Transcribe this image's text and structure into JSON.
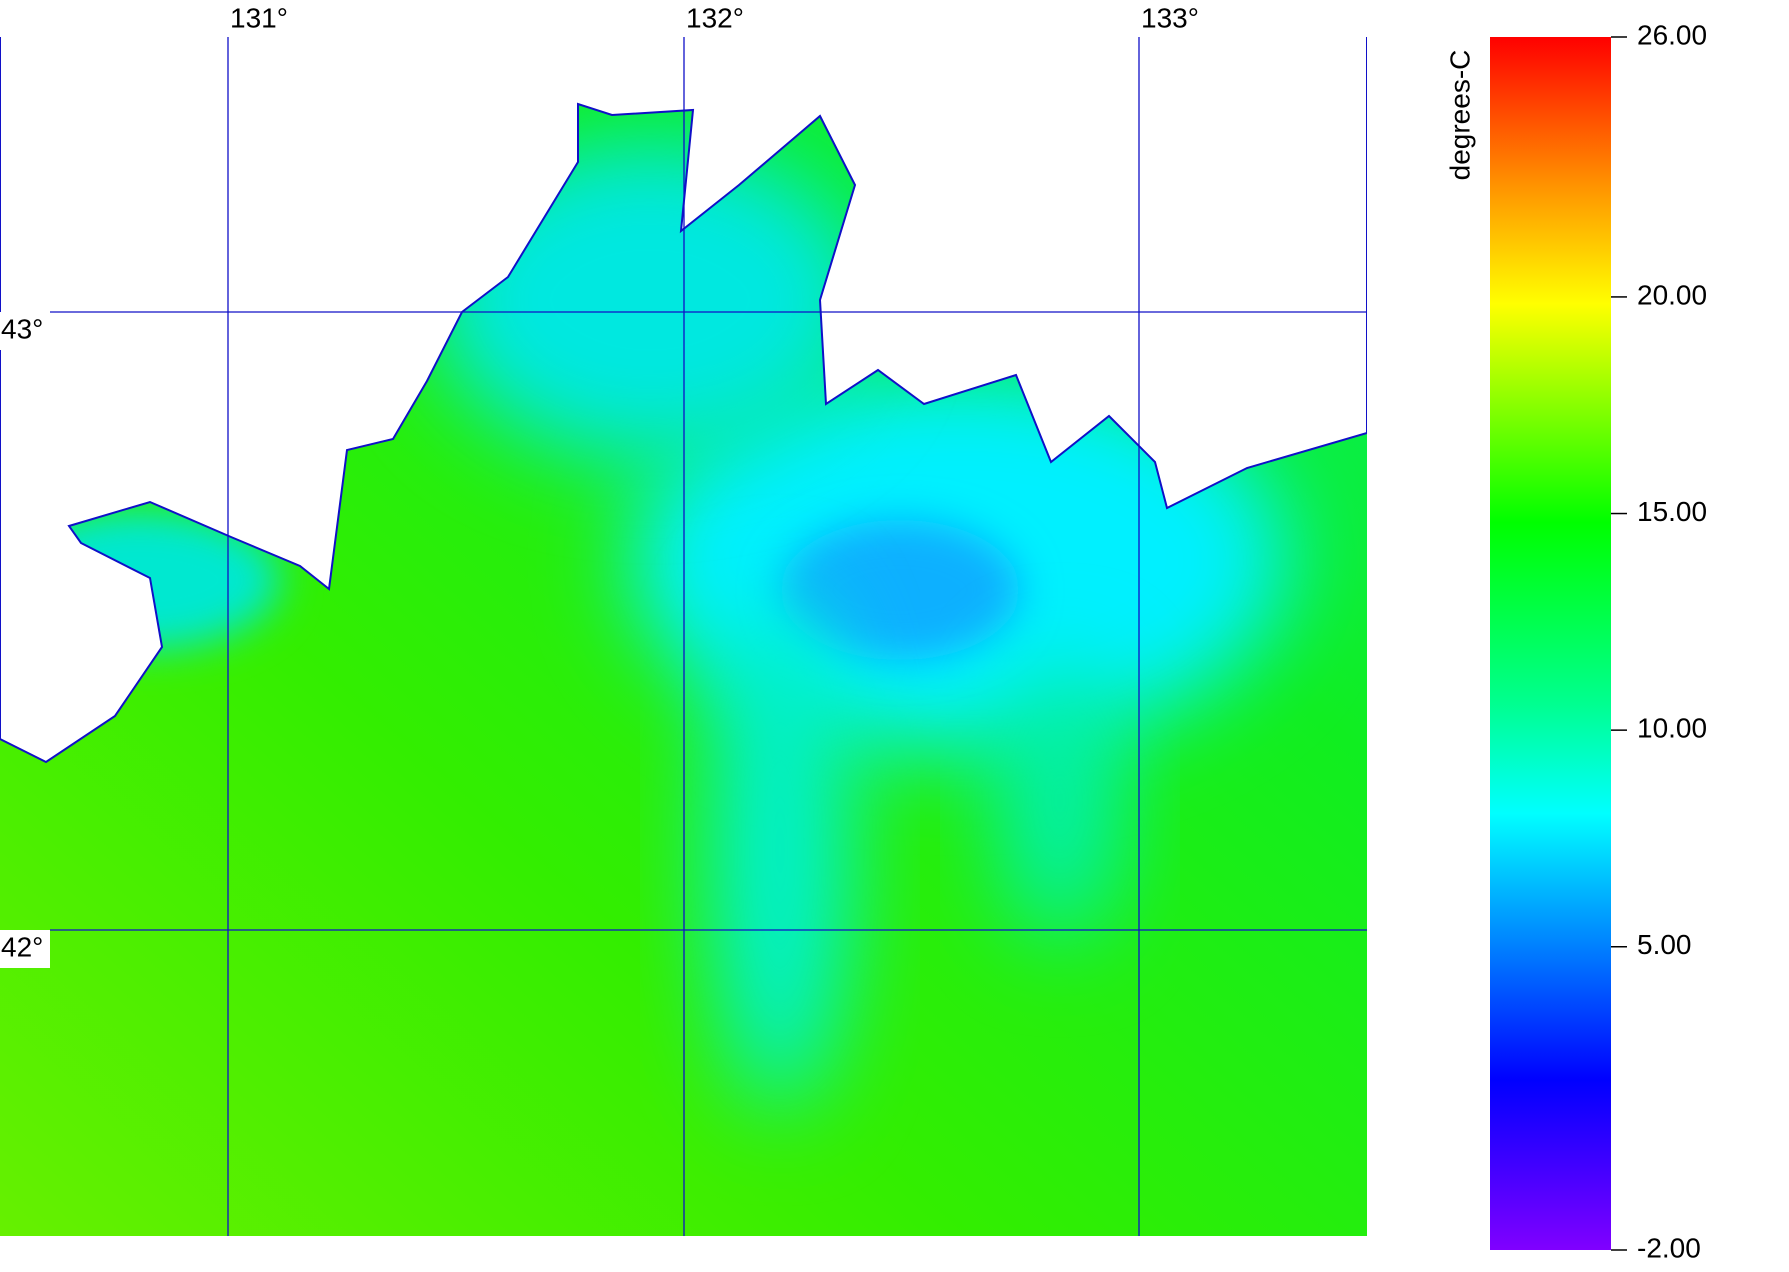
{
  "map": {
    "longitude_labels": [
      "131°",
      "132°",
      "133°"
    ],
    "latitude_labels": [
      "43°",
      "42°"
    ]
  },
  "colorbar": {
    "label": "degrees-C",
    "range": [
      -2,
      26
    ],
    "ticks": [
      {
        "value": 26,
        "label": "26.00"
      },
      {
        "value": 20,
        "label": "20.00"
      },
      {
        "value": 15,
        "label": "15.00"
      },
      {
        "value": 10,
        "label": "10.00"
      },
      {
        "value": 5,
        "label": "5.00"
      },
      {
        "value": -2,
        "label": "-2.00"
      }
    ]
  }
}
